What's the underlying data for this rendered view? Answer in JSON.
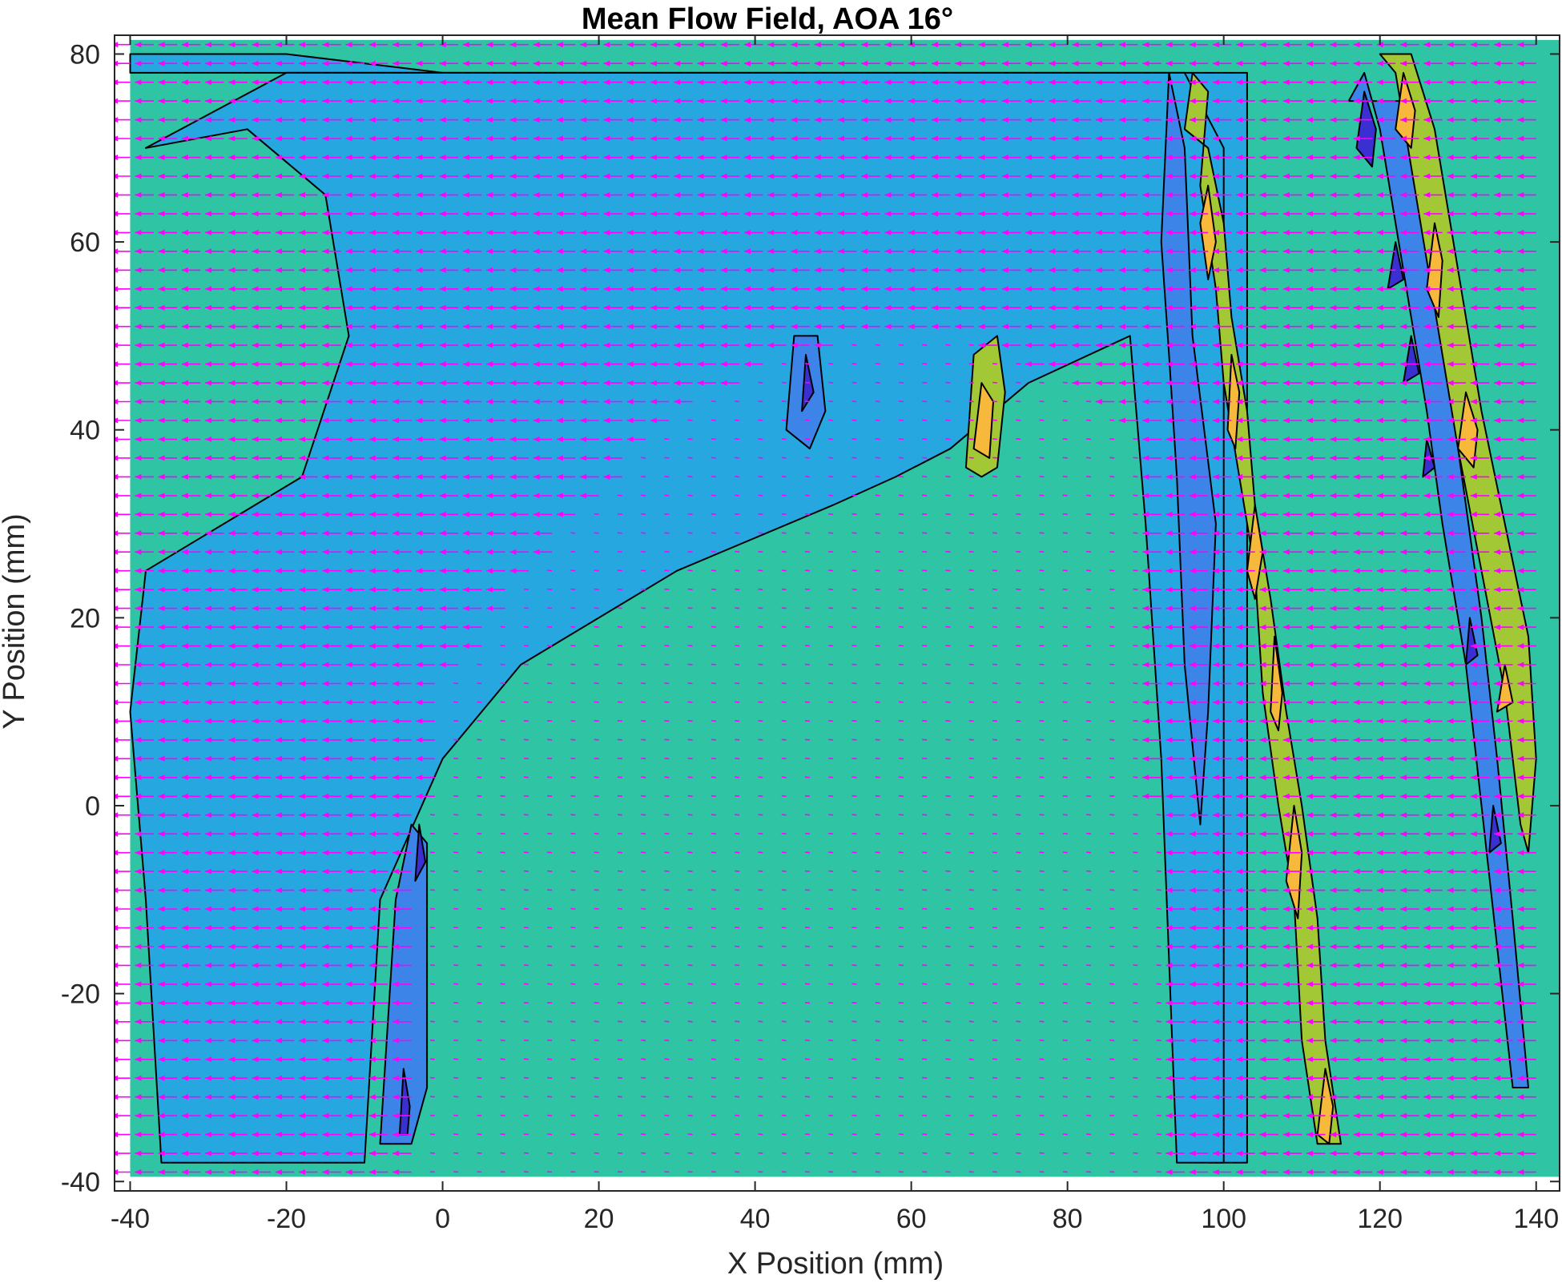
{
  "chart_data": {
    "type": "contour",
    "title": "Mean Flow Field, AOA 16°",
    "xlabel": "X Position (mm)",
    "ylabel": "Y Position (mm)",
    "xlim": [
      -42,
      143
    ],
    "ylim": [
      -41,
      82
    ],
    "xticks": [
      -40,
      -20,
      0,
      20,
      40,
      60,
      80,
      100,
      120,
      140
    ],
    "yticks": [
      -40,
      -20,
      0,
      20,
      40,
      60,
      80
    ],
    "xtick_labels": [
      "-40",
      "-20",
      "0",
      "20",
      "40",
      "60",
      "80",
      "100",
      "120",
      "140"
    ],
    "ytick_labels": [
      "-40",
      "-20",
      "0",
      "20",
      "40",
      "60",
      "80"
    ],
    "grid": false,
    "data_extent": {
      "x": [
        -40,
        143
      ],
      "y": [
        -39.5,
        81.5
      ]
    },
    "background_level_color": "#2ec4a4",
    "level_colors": {
      "teal": "#2ec4a4",
      "light_blue": "#27a7e0",
      "blue": "#3d84e8",
      "medium_blue": "#4a5de0",
      "dark_blue": "#3a2fd0",
      "yellow_green": "#a3c836",
      "orange_yellow": "#f7b93c"
    },
    "regions": [
      {
        "level": "light_blue",
        "outline": [
          [
            -40,
            80
          ],
          [
            -20,
            80
          ],
          [
            0,
            78
          ],
          [
            20,
            75
          ],
          [
            40,
            72
          ],
          [
            60,
            68
          ],
          [
            80,
            62
          ],
          [
            95,
            60
          ],
          [
            100,
            20
          ],
          [
            98,
            -38
          ],
          [
            103,
            -38
          ],
          [
            103,
            78
          ],
          [
            -40,
            78
          ]
        ]
      },
      {
        "level": "light_blue",
        "outline": [
          [
            -38,
            70
          ],
          [
            -25,
            72
          ],
          [
            -15,
            65
          ],
          [
            -12,
            50
          ],
          [
            -18,
            35
          ],
          [
            -28,
            30
          ],
          [
            -38,
            25
          ],
          [
            -40,
            10
          ],
          [
            -38,
            -10
          ],
          [
            -36,
            -38
          ],
          [
            -10,
            -38
          ],
          [
            -8,
            -10
          ],
          [
            0,
            5
          ],
          [
            10,
            15
          ],
          [
            30,
            25
          ],
          [
            50,
            32
          ],
          [
            58,
            35
          ],
          [
            65,
            38
          ],
          [
            75,
            45
          ],
          [
            88,
            50
          ],
          [
            90,
            30
          ],
          [
            92,
            5
          ],
          [
            94,
            -38
          ],
          [
            100,
            -38
          ],
          [
            100,
            70
          ],
          [
            95,
            78
          ],
          [
            60,
            78
          ],
          [
            20,
            78
          ],
          [
            -20,
            78
          ]
        ]
      },
      {
        "level": "blue",
        "outline": [
          [
            -8,
            -36
          ],
          [
            -6,
            -10
          ],
          [
            -4,
            -2
          ],
          [
            -2,
            -4
          ],
          [
            -2,
            -30
          ],
          [
            -4,
            -36
          ]
        ]
      },
      {
        "level": "dark_blue",
        "outline": [
          [
            -5.5,
            -35
          ],
          [
            -5,
            -28
          ],
          [
            -4.2,
            -32
          ],
          [
            -4.5,
            -35
          ]
        ]
      },
      {
        "level": "dark_blue",
        "outline": [
          [
            -3.5,
            -8
          ],
          [
            -3,
            -2
          ],
          [
            -2.2,
            -6
          ]
        ]
      },
      {
        "level": "blue",
        "outline": [
          [
            44,
            40
          ],
          [
            45,
            50
          ],
          [
            48,
            50
          ],
          [
            49,
            42
          ],
          [
            47,
            38
          ]
        ]
      },
      {
        "level": "dark_blue",
        "outline": [
          [
            46,
            42
          ],
          [
            46.5,
            48
          ],
          [
            47.5,
            44
          ]
        ]
      },
      {
        "level": "yellow_green",
        "outline": [
          [
            67,
            36
          ],
          [
            68,
            48
          ],
          [
            71,
            50
          ],
          [
            72,
            44
          ],
          [
            71,
            36
          ],
          [
            69,
            35
          ]
        ]
      },
      {
        "level": "orange_yellow",
        "outline": [
          [
            68,
            38
          ],
          [
            69,
            45
          ],
          [
            70.5,
            43
          ],
          [
            70,
            37
          ]
        ]
      },
      {
        "level": "blue",
        "outline": [
          [
            92,
            60
          ],
          [
            93,
            78
          ],
          [
            95,
            70
          ],
          [
            96,
            50
          ],
          [
            99,
            30
          ],
          [
            98,
            10
          ],
          [
            97,
            -2
          ],
          [
            95,
            15
          ],
          [
            94,
            35
          ],
          [
            93,
            48
          ]
        ]
      },
      {
        "level": "yellow_green",
        "outline": [
          [
            95,
            72
          ],
          [
            96,
            78
          ],
          [
            98,
            76
          ],
          [
            97,
            66
          ],
          [
            99,
            55
          ],
          [
            100,
            45
          ],
          [
            102,
            35
          ],
          [
            104,
            25
          ],
          [
            105,
            12
          ],
          [
            107,
            0
          ],
          [
            109,
            -10
          ],
          [
            110,
            -25
          ],
          [
            112,
            -36
          ],
          [
            115,
            -36
          ],
          [
            113,
            -25
          ],
          [
            112,
            -12
          ],
          [
            110,
            0
          ],
          [
            108,
            10
          ],
          [
            106,
            22
          ],
          [
            104,
            32
          ],
          [
            103,
            42
          ],
          [
            101,
            52
          ],
          [
            100,
            62
          ],
          [
            98,
            70
          ]
        ]
      },
      {
        "level": "orange_yellow",
        "outline": [
          [
            97,
            62
          ],
          [
            98,
            66
          ],
          [
            99,
            60
          ],
          [
            98,
            56
          ]
        ]
      },
      {
        "level": "orange_yellow",
        "outline": [
          [
            100.5,
            40
          ],
          [
            101,
            48
          ],
          [
            102,
            44
          ],
          [
            101.5,
            38
          ]
        ]
      },
      {
        "level": "orange_yellow",
        "outline": [
          [
            103,
            25
          ],
          [
            104,
            32
          ],
          [
            105,
            27
          ],
          [
            104,
            22
          ]
        ]
      },
      {
        "level": "orange_yellow",
        "outline": [
          [
            106,
            10
          ],
          [
            106.5,
            18
          ],
          [
            107.5,
            12
          ],
          [
            107,
            8
          ]
        ]
      },
      {
        "level": "orange_yellow",
        "outline": [
          [
            108,
            -8
          ],
          [
            109,
            0
          ],
          [
            110,
            -5
          ],
          [
            109.5,
            -12
          ]
        ]
      },
      {
        "level": "orange_yellow",
        "outline": [
          [
            112,
            -35
          ],
          [
            113,
            -28
          ],
          [
            114,
            -32
          ],
          [
            113.5,
            -36
          ]
        ]
      },
      {
        "level": "blue",
        "outline": [
          [
            116,
            75
          ],
          [
            118,
            78
          ],
          [
            120,
            72
          ],
          [
            122,
            62
          ],
          [
            124,
            52
          ],
          [
            126,
            42
          ],
          [
            128,
            30
          ],
          [
            131,
            15
          ],
          [
            133,
            0
          ],
          [
            135,
            -15
          ],
          [
            137,
            -30
          ],
          [
            139,
            -30
          ],
          [
            137,
            -12
          ],
          [
            135,
            5
          ],
          [
            133,
            20
          ],
          [
            131,
            32
          ],
          [
            129,
            44
          ],
          [
            127,
            56
          ],
          [
            125,
            66
          ],
          [
            123,
            75
          ]
        ]
      },
      {
        "level": "dark_blue",
        "outline": [
          [
            117,
            70
          ],
          [
            118,
            76
          ],
          [
            119.5,
            72
          ],
          [
            119,
            68
          ]
        ]
      },
      {
        "level": "dark_blue",
        "outline": [
          [
            121,
            55
          ],
          [
            122,
            60
          ],
          [
            123,
            56
          ]
        ]
      },
      {
        "level": "dark_blue",
        "outline": [
          [
            123,
            45
          ],
          [
            124,
            50
          ],
          [
            125,
            46
          ]
        ]
      },
      {
        "level": "dark_blue",
        "outline": [
          [
            125.5,
            35
          ],
          [
            126,
            39
          ],
          [
            127,
            36
          ]
        ]
      },
      {
        "level": "dark_blue",
        "outline": [
          [
            131,
            15
          ],
          [
            131.5,
            20
          ],
          [
            132.5,
            16
          ]
        ]
      },
      {
        "level": "dark_blue",
        "outline": [
          [
            134,
            -5
          ],
          [
            134.5,
            0
          ],
          [
            135.5,
            -4
          ]
        ]
      },
      {
        "level": "yellow_green",
        "outline": [
          [
            120,
            80
          ],
          [
            122,
            78
          ],
          [
            124,
            68
          ],
          [
            126,
            58
          ],
          [
            128,
            48
          ],
          [
            130,
            38
          ],
          [
            133,
            25
          ],
          [
            136,
            12
          ],
          [
            138,
            -2
          ],
          [
            139,
            -5
          ],
          [
            140,
            5
          ],
          [
            139,
            18
          ],
          [
            136,
            30
          ],
          [
            133,
            42
          ],
          [
            131,
            52
          ],
          [
            129,
            62
          ],
          [
            127,
            72
          ],
          [
            124,
            80
          ]
        ]
      },
      {
        "level": "orange_yellow",
        "outline": [
          [
            122,
            72
          ],
          [
            123,
            78
          ],
          [
            124.5,
            74
          ],
          [
            124,
            70
          ]
        ]
      },
      {
        "level": "orange_yellow",
        "outline": [
          [
            126,
            55
          ],
          [
            127,
            62
          ],
          [
            128,
            58
          ],
          [
            127.5,
            52
          ]
        ]
      },
      {
        "level": "orange_yellow",
        "outline": [
          [
            130,
            38
          ],
          [
            131,
            44
          ],
          [
            132.5,
            40
          ],
          [
            132,
            36
          ]
        ]
      },
      {
        "level": "orange_yellow",
        "outline": [
          [
            135,
            10
          ],
          [
            136,
            15
          ],
          [
            137,
            11
          ]
        ]
      }
    ],
    "vector_field": {
      "color": "#ff00ff",
      "description": "mean velocity vectors, predominantly pointing in the -x direction; near-zero magnitude inside the separated region above the airfoil",
      "rows_y": [
        81,
        79,
        77,
        75,
        73,
        71,
        69,
        67,
        65,
        63,
        61,
        59,
        57,
        55,
        53,
        51,
        49,
        47,
        45,
        43,
        41,
        39,
        37,
        35,
        33,
        31,
        29,
        27,
        25,
        23,
        21,
        19,
        17,
        15,
        13,
        11,
        9,
        7,
        5,
        3,
        1,
        -1,
        -3,
        -5,
        -7,
        -9,
        -11,
        -13,
        -15,
        -17,
        -19,
        -21,
        -23,
        -25,
        -27,
        -29,
        -31,
        -33,
        -35,
        -37,
        -39
      ],
      "cols_x": [
        -40,
        -37,
        -34,
        -31,
        -28,
        -25,
        -22,
        -19,
        -16,
        -13,
        -10,
        -7,
        -4,
        -1,
        2,
        5,
        8,
        11,
        14,
        17,
        20,
        23,
        26,
        29,
        32,
        35,
        38,
        41,
        44,
        47,
        50,
        53,
        56,
        59,
        62,
        65,
        68,
        71,
        74,
        77,
        80,
        83,
        86,
        89,
        92,
        95,
        98,
        101,
        104,
        107,
        110,
        113,
        116,
        119,
        122,
        125,
        128,
        131,
        134,
        137,
        140
      ]
    }
  }
}
